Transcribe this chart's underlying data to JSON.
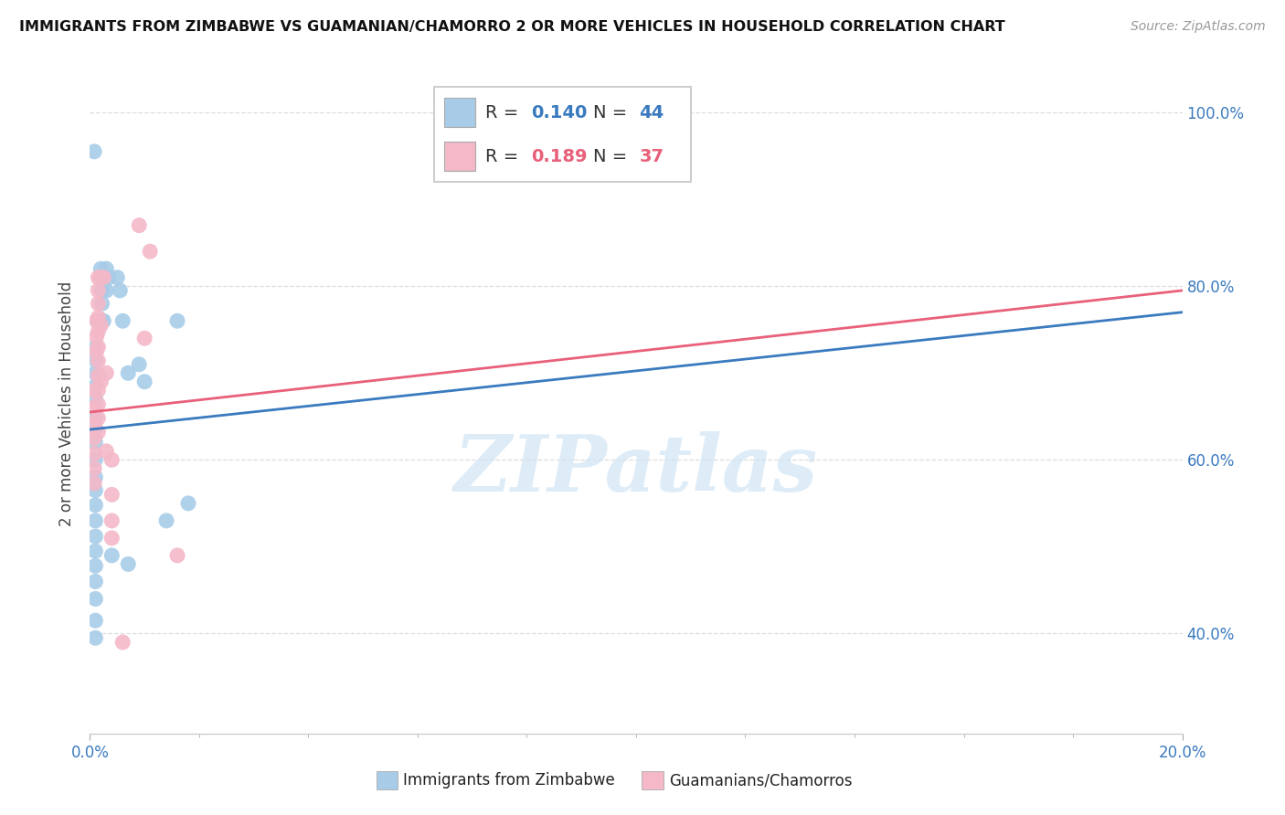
{
  "title": "IMMIGRANTS FROM ZIMBABWE VS GUAMANIAN/CHAMORRO 2 OR MORE VEHICLES IN HOUSEHOLD CORRELATION CHART",
  "source": "Source: ZipAtlas.com",
  "ylabel": "2 or more Vehicles in Household",
  "yticks": [
    0.4,
    0.6,
    0.8,
    1.0
  ],
  "ytick_labels": [
    "40.0%",
    "60.0%",
    "80.0%",
    "100.0%"
  ],
  "xtick_labels": [
    "0.0%",
    "20.0%"
  ],
  "blue_color": "#a8cce8",
  "pink_color": "#f4b8c8",
  "blue_line_color": "#3a7abf",
  "pink_line_color": "#e8607a",
  "blue_scatter": [
    [
      0.0008,
      0.955
    ],
    [
      0.001,
      0.73
    ],
    [
      0.001,
      0.715
    ],
    [
      0.001,
      0.7
    ],
    [
      0.001,
      0.685
    ],
    [
      0.001,
      0.67
    ],
    [
      0.001,
      0.65
    ],
    [
      0.001,
      0.635
    ],
    [
      0.001,
      0.62
    ],
    [
      0.001,
      0.6
    ],
    [
      0.001,
      0.58
    ],
    [
      0.001,
      0.565
    ],
    [
      0.001,
      0.548
    ],
    [
      0.001,
      0.53
    ],
    [
      0.001,
      0.512
    ],
    [
      0.001,
      0.495
    ],
    [
      0.001,
      0.478
    ],
    [
      0.001,
      0.46
    ],
    [
      0.001,
      0.44
    ],
    [
      0.001,
      0.415
    ],
    [
      0.001,
      0.395
    ],
    [
      0.0015,
      0.76
    ],
    [
      0.002,
      0.82
    ],
    [
      0.002,
      0.76
    ],
    [
      0.0022,
      0.81
    ],
    [
      0.0022,
      0.795
    ],
    [
      0.0022,
      0.78
    ],
    [
      0.0022,
      0.76
    ],
    [
      0.0025,
      0.81
    ],
    [
      0.0025,
      0.76
    ],
    [
      0.003,
      0.82
    ],
    [
      0.003,
      0.795
    ],
    [
      0.0035,
      0.81
    ],
    [
      0.004,
      0.49
    ],
    [
      0.005,
      0.81
    ],
    [
      0.0055,
      0.795
    ],
    [
      0.006,
      0.76
    ],
    [
      0.007,
      0.7
    ],
    [
      0.007,
      0.48
    ],
    [
      0.009,
      0.71
    ],
    [
      0.01,
      0.69
    ],
    [
      0.014,
      0.53
    ],
    [
      0.016,
      0.76
    ],
    [
      0.018,
      0.55
    ]
  ],
  "pink_scatter": [
    [
      0.0008,
      0.68
    ],
    [
      0.0008,
      0.66
    ],
    [
      0.0008,
      0.642
    ],
    [
      0.0008,
      0.625
    ],
    [
      0.0008,
      0.607
    ],
    [
      0.0008,
      0.59
    ],
    [
      0.0008,
      0.573
    ],
    [
      0.0012,
      0.76
    ],
    [
      0.0012,
      0.742
    ],
    [
      0.0012,
      0.725
    ],
    [
      0.0015,
      0.81
    ],
    [
      0.0015,
      0.795
    ],
    [
      0.0015,
      0.78
    ],
    [
      0.0015,
      0.764
    ],
    [
      0.0015,
      0.748
    ],
    [
      0.0015,
      0.73
    ],
    [
      0.0015,
      0.714
    ],
    [
      0.0015,
      0.697
    ],
    [
      0.0015,
      0.68
    ],
    [
      0.0015,
      0.664
    ],
    [
      0.0015,
      0.648
    ],
    [
      0.0015,
      0.632
    ],
    [
      0.002,
      0.81
    ],
    [
      0.002,
      0.755
    ],
    [
      0.002,
      0.69
    ],
    [
      0.0025,
      0.81
    ],
    [
      0.003,
      0.7
    ],
    [
      0.003,
      0.61
    ],
    [
      0.004,
      0.6
    ],
    [
      0.004,
      0.56
    ],
    [
      0.004,
      0.53
    ],
    [
      0.004,
      0.51
    ],
    [
      0.006,
      0.39
    ],
    [
      0.009,
      0.87
    ],
    [
      0.01,
      0.74
    ],
    [
      0.011,
      0.84
    ],
    [
      0.016,
      0.49
    ]
  ],
  "blue_trendline": [
    0.0,
    0.635,
    0.2,
    0.77
  ],
  "pink_trendline": [
    0.0,
    0.655,
    0.2,
    0.795
  ],
  "xmin": 0.0,
  "xmax": 0.2,
  "ymin": 0.285,
  "ymax": 1.045,
  "watermark": "ZIPatlas",
  "watermark_color": "#d0e4f5",
  "background_color": "#ffffff",
  "grid_color": "#dddddd"
}
